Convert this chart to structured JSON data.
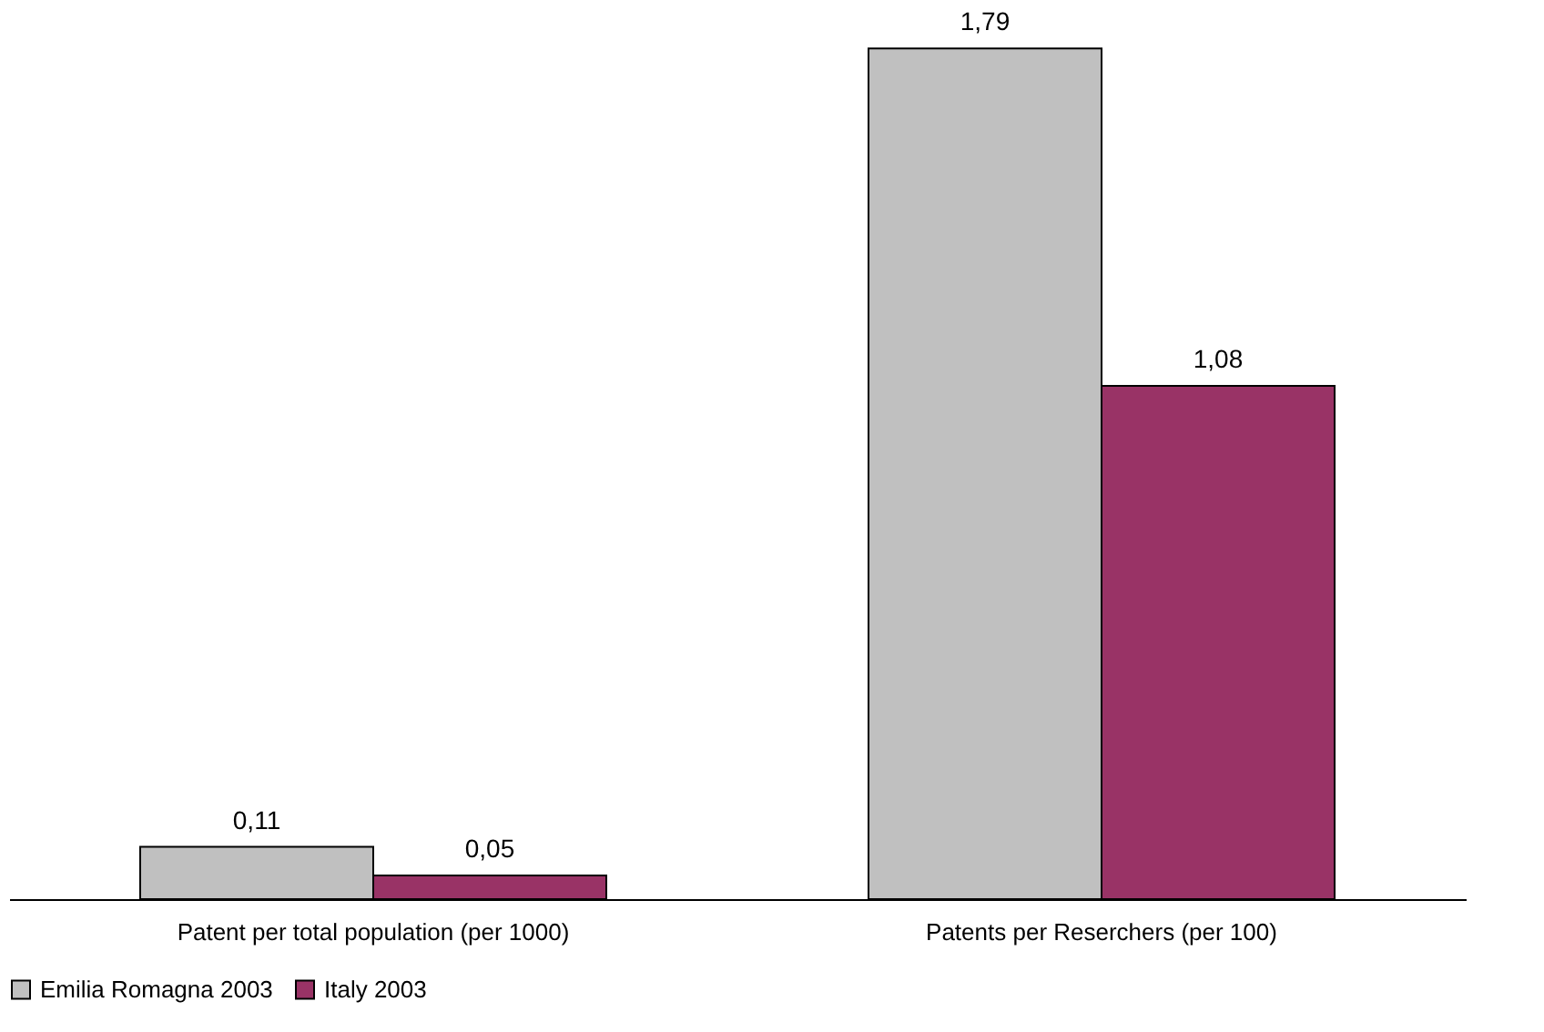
{
  "chart_data": {
    "type": "bar",
    "categories": [
      "Patent per total population (per 1000)",
      "Patents per Reserchers (per 100)"
    ],
    "series": [
      {
        "name": "Emilia Romagna 2003",
        "color": "#c0c0c0",
        "values": [
          0.11,
          1.79
        ],
        "value_labels": [
          "0,11",
          "1,79"
        ]
      },
      {
        "name": "Italy 2003",
        "color": "#993366",
        "values": [
          0.05,
          1.08
        ],
        "value_labels": [
          "0,05",
          "1,08"
        ]
      }
    ],
    "tick_labels": "x",
    "grid": false,
    "legend": "bottom"
  }
}
